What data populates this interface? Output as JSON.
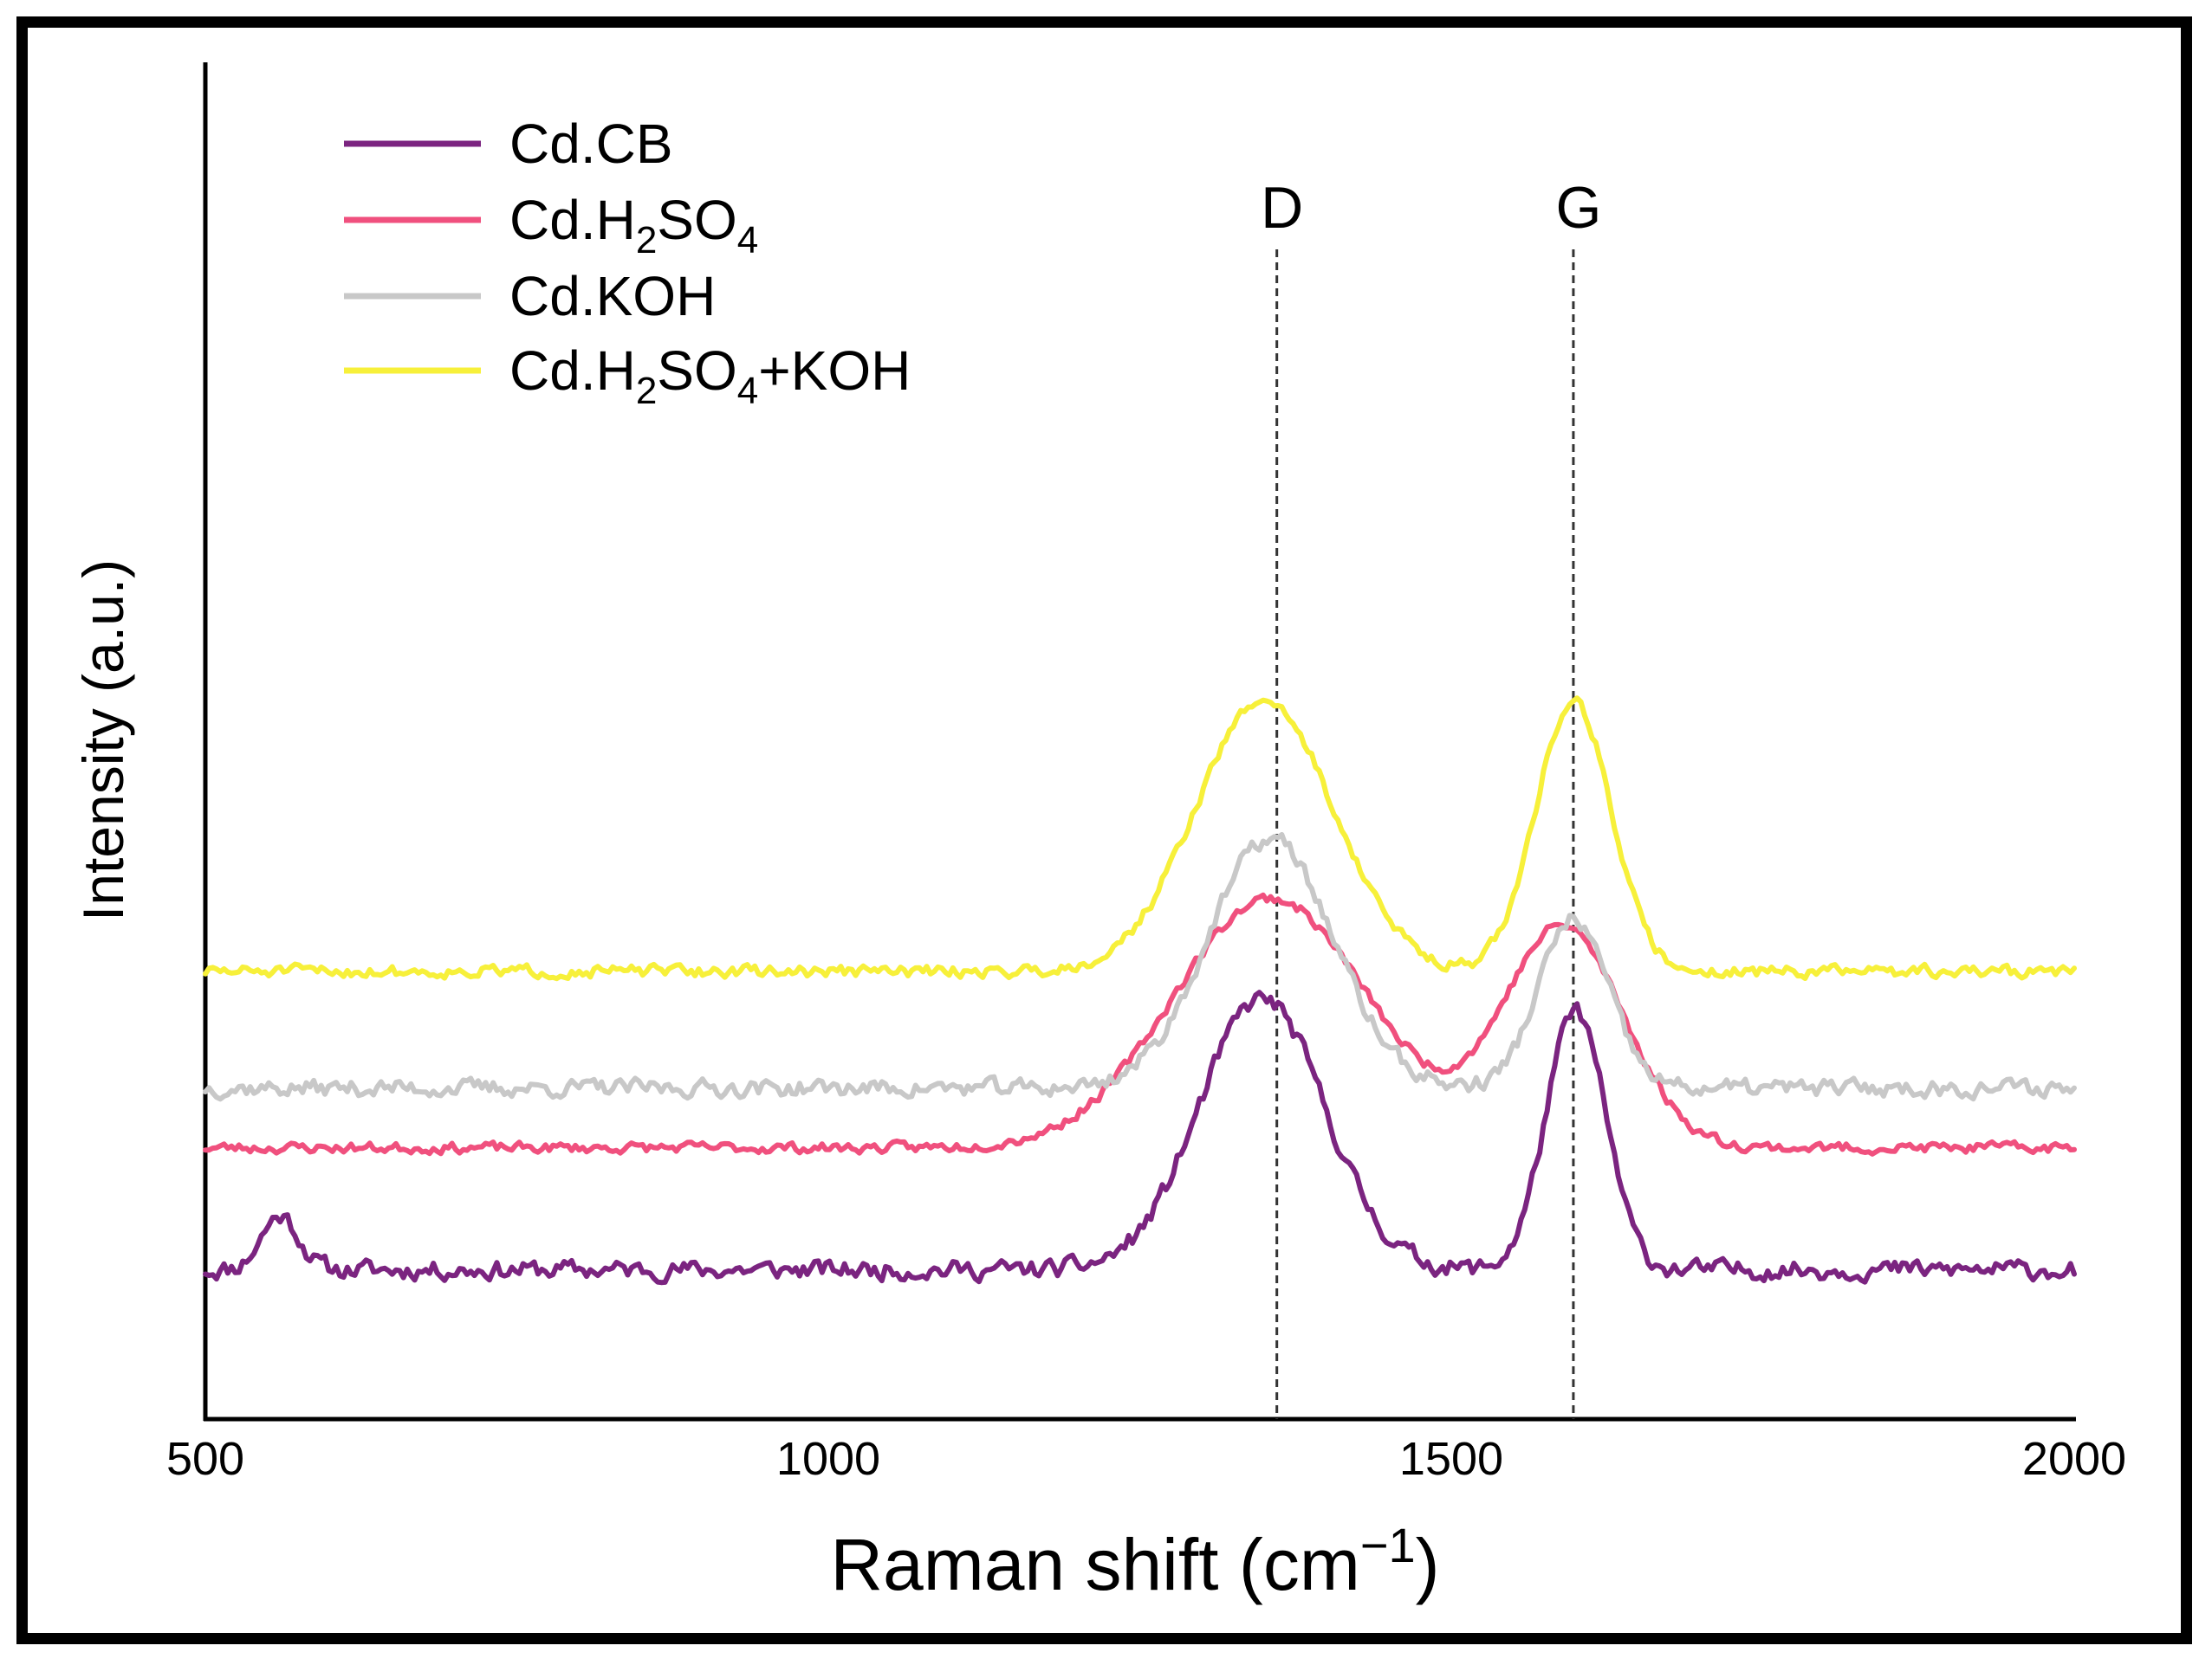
{
  "chart_data": {
    "type": "line",
    "title": "",
    "xlabel": "Raman shift (cm",
    "xlabel_sup": "−1",
    "xlabel_close": ")",
    "ylabel": "Intensity (a.u.)",
    "xlim": [
      500,
      2000
    ],
    "ylim": [
      0,
      5
    ],
    "xticks": [
      500,
      1000,
      1500,
      2000
    ],
    "xtick_labels": [
      "500",
      "1000",
      "1500",
      "2000"
    ],
    "grid": false,
    "legend_position": "top-left",
    "peak_markers": [
      {
        "label": "D",
        "x": 1360
      },
      {
        "label": "G",
        "x": 1598
      }
    ],
    "series": [
      {
        "name": "Cd.CB",
        "legend": [
          "Cd.CB"
        ],
        "color": "#7b2480",
        "baseline": 0.55,
        "noise": 0.055,
        "seed": 11,
        "peaks": [
          {
            "center": 1348,
            "height": 1.0,
            "width": 50
          },
          {
            "center": 1600,
            "height": 0.95,
            "width": 24
          },
          {
            "center": 560,
            "height": 0.2,
            "width": 15
          }
        ]
      },
      {
        "name": "Cd.H2SO4",
        "legend": [
          "Cd.H",
          "2",
          "SO",
          "4",
          ""
        ],
        "color": "#f0507e",
        "baseline": 1.0,
        "noise": 0.03,
        "seed": 23,
        "peaks": [
          {
            "center": 1355,
            "height": 0.92,
            "width": 78
          },
          {
            "center": 1590,
            "height": 0.81,
            "width": 48
          }
        ]
      },
      {
        "name": "Cd.KOH",
        "legend": [
          "Cd.KOH"
        ],
        "color": "#c8c8c8",
        "baseline": 1.22,
        "noise": 0.05,
        "seed": 37,
        "peaks": [
          {
            "center": 1355,
            "height": 0.92,
            "width": 50
          },
          {
            "center": 1598,
            "height": 0.62,
            "width": 28
          }
        ]
      },
      {
        "name": "Cd.H2SO4+KOH",
        "legend": [
          "Cd.H",
          "2",
          "SO",
          "4",
          "+KOH"
        ],
        "color": "#f7f03a",
        "baseline": 1.65,
        "noise": 0.035,
        "seed": 51,
        "peaks": [
          {
            "center": 1350,
            "height": 1.0,
            "width": 55
          },
          {
            "center": 1598,
            "height": 1.0,
            "width": 30
          }
        ]
      }
    ]
  }
}
